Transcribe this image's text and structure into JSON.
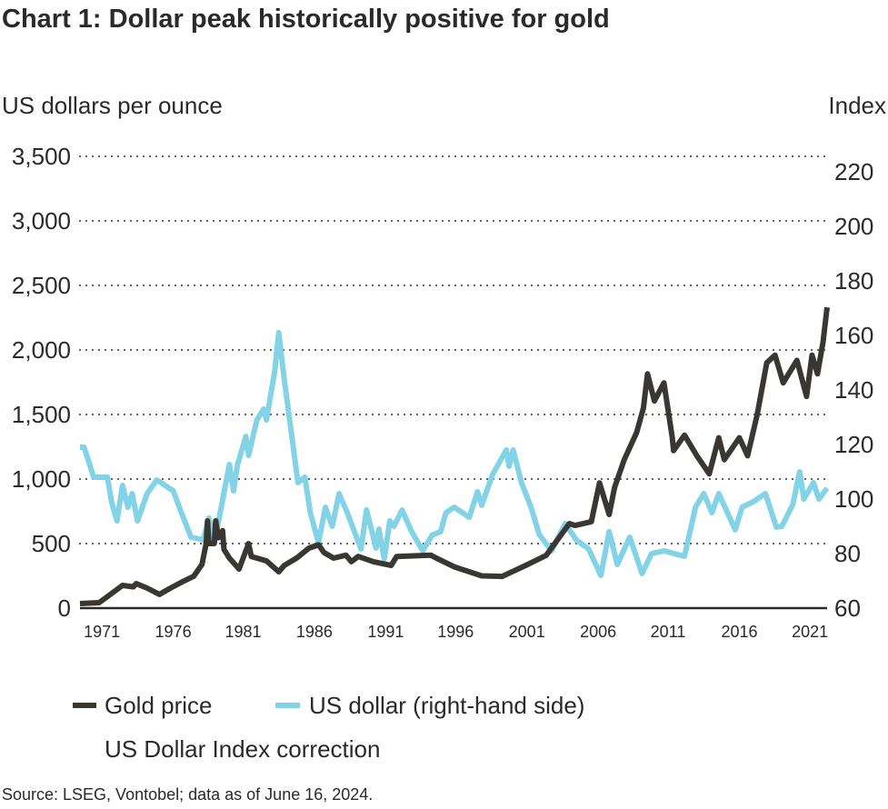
{
  "chart_data": {
    "type": "line",
    "title": "Chart 1: Dollar peak historically positive for gold",
    "ylabel_left": "US dollars per ounce",
    "ylabel_right": "Index",
    "ylim_left": [
      0,
      3500
    ],
    "ylim_right": [
      60,
      225
    ],
    "xlim": [
      1970,
      2024.5
    ],
    "grid": "horizontal dotted",
    "y_ticks_left": [
      "0",
      "500",
      "1,000",
      "1,500",
      "2,000",
      "2,500",
      "3,000",
      "3,500"
    ],
    "y_ticks_left_values": [
      0,
      500,
      1000,
      1500,
      2000,
      2500,
      3000,
      3500
    ],
    "y_ticks_right": [
      "60",
      "80",
      "100",
      "120",
      "140",
      "160",
      "180",
      "200",
      "220"
    ],
    "y_ticks_right_values": [
      60,
      80,
      100,
      120,
      140,
      160,
      180,
      200,
      220
    ],
    "x_ticks": [
      "1971",
      "1976",
      "1981",
      "1986",
      "1991",
      "1996",
      "2001",
      "2006",
      "2011",
      "2016",
      "2021"
    ],
    "x_tick_values": [
      1971.6,
      1976.8,
      1981.9,
      1987.1,
      1992.3,
      1997.4,
      2002.6,
      2007.8,
      2012.9,
      2018.1,
      2023.25
    ],
    "legend_position": "bottom",
    "series": [
      {
        "name": "Gold price",
        "axis": "left",
        "color": "#3a3733",
        "points": [
          [
            1970,
            35
          ],
          [
            1971.4,
            42
          ],
          [
            1972.3,
            113
          ],
          [
            1973.1,
            176
          ],
          [
            1973.9,
            165
          ],
          [
            1974.1,
            190
          ],
          [
            1974.9,
            155
          ],
          [
            1975.8,
            106
          ],
          [
            1976.6,
            155
          ],
          [
            1977.4,
            200
          ],
          [
            1978.3,
            247
          ],
          [
            1978.9,
            338
          ],
          [
            1979.2,
            500
          ],
          [
            1979.3,
            676
          ],
          [
            1979.4,
            500
          ],
          [
            1979.8,
            500
          ],
          [
            1979.9,
            676
          ],
          [
            1980.1,
            545
          ],
          [
            1980.4,
            600
          ],
          [
            1980.5,
            455
          ],
          [
            1980.9,
            387
          ],
          [
            1981.6,
            303
          ],
          [
            1982.3,
            500
          ],
          [
            1982.5,
            400
          ],
          [
            1983.6,
            366
          ],
          [
            1984.5,
            282
          ],
          [
            1984.9,
            330
          ],
          [
            1985.8,
            387
          ],
          [
            1986.7,
            465
          ],
          [
            1987.4,
            490
          ],
          [
            1987.8,
            430
          ],
          [
            1988.5,
            387
          ],
          [
            1989.4,
            410
          ],
          [
            1989.8,
            360
          ],
          [
            1990.3,
            400
          ],
          [
            1991.4,
            360
          ],
          [
            1992.7,
            330
          ],
          [
            1993.1,
            400
          ],
          [
            1995.6,
            410
          ],
          [
            1996,
            387
          ],
          [
            1997.3,
            320
          ],
          [
            1999.3,
            250
          ],
          [
            2000.8,
            246
          ],
          [
            2002.5,
            330
          ],
          [
            2004,
            408
          ],
          [
            2005.7,
            655
          ],
          [
            2006.1,
            640
          ],
          [
            2007.3,
            670
          ],
          [
            2007.9,
            970
          ],
          [
            2008.6,
            725
          ],
          [
            2009,
            935
          ],
          [
            2009.7,
            1150
          ],
          [
            2010.6,
            1360
          ],
          [
            2011.1,
            1550
          ],
          [
            2011.4,
            1815
          ],
          [
            2011.9,
            1605
          ],
          [
            2012.6,
            1745
          ],
          [
            2013.2,
            1325
          ],
          [
            2013.3,
            1220
          ],
          [
            2014.1,
            1340
          ],
          [
            2015,
            1180
          ],
          [
            2015.9,
            1040
          ],
          [
            2016.6,
            1320
          ],
          [
            2017,
            1150
          ],
          [
            2018.1,
            1320
          ],
          [
            2018.7,
            1180
          ],
          [
            2019.4,
            1500
          ],
          [
            2020.1,
            1900
          ],
          [
            2020.7,
            1960
          ],
          [
            2021.3,
            1745
          ],
          [
            2022.3,
            1920
          ],
          [
            2023,
            1640
          ],
          [
            2023.4,
            1960
          ],
          [
            2023.8,
            1815
          ],
          [
            2024.2,
            2060
          ],
          [
            2024.5,
            2330
          ]
        ]
      },
      {
        "name": "US dollar (right-hand side)",
        "axis": "right",
        "color": "#82d3e6",
        "points": [
          [
            1970,
            119
          ],
          [
            1970.3,
            119
          ],
          [
            1971,
            108
          ],
          [
            1972,
            108
          ],
          [
            1972.3,
            99
          ],
          [
            1972.7,
            92
          ],
          [
            1973.1,
            105
          ],
          [
            1973.5,
            97
          ],
          [
            1973.8,
            102
          ],
          [
            1974.2,
            92
          ],
          [
            1974.9,
            102
          ],
          [
            1975.6,
            107
          ],
          [
            1976.8,
            103
          ],
          [
            1977.4,
            95
          ],
          [
            1978.1,
            86
          ],
          [
            1979,
            85
          ],
          [
            1979.4,
            93
          ],
          [
            1979.8,
            84
          ],
          [
            1980.3,
            97
          ],
          [
            1980.9,
            112.7
          ],
          [
            1981.2,
            103
          ],
          [
            1981.5,
            112.7
          ],
          [
            1982.1,
            123
          ],
          [
            1982.3,
            116
          ],
          [
            1982.9,
            129
          ],
          [
            1983.4,
            133
          ],
          [
            1983.6,
            129
          ],
          [
            1984.2,
            146.7
          ],
          [
            1984.5,
            161
          ],
          [
            1984.9,
            144
          ],
          [
            1985.4,
            125
          ],
          [
            1985.9,
            106
          ],
          [
            1986.4,
            108
          ],
          [
            1986.8,
            95
          ],
          [
            1987.4,
            84
          ],
          [
            1987.9,
            97
          ],
          [
            1988.4,
            90
          ],
          [
            1988.9,
            102
          ],
          [
            1989.5,
            95
          ],
          [
            1990.5,
            81.7
          ],
          [
            1990.9,
            96
          ],
          [
            1991.6,
            82
          ],
          [
            1991.8,
            89
          ],
          [
            1992.2,
            78
          ],
          [
            1992.6,
            92
          ],
          [
            1992.9,
            90
          ],
          [
            1993.5,
            96
          ],
          [
            1994.2,
            88
          ],
          [
            1995,
            81
          ],
          [
            1995.7,
            86.8
          ],
          [
            1996.3,
            88
          ],
          [
            1996.7,
            95
          ],
          [
            1997.3,
            97
          ],
          [
            1998.4,
            93.3
          ],
          [
            1999,
            102.7
          ],
          [
            1999.3,
            97.7
          ],
          [
            2000.1,
            109
          ],
          [
            2001.1,
            118
          ],
          [
            2001.3,
            112
          ],
          [
            2001.6,
            118
          ],
          [
            2002.2,
            106
          ],
          [
            2002.9,
            97
          ],
          [
            2003.5,
            87
          ],
          [
            2004.4,
            81
          ],
          [
            2005.4,
            91
          ],
          [
            2006.2,
            85
          ],
          [
            2007.1,
            81.7
          ],
          [
            2008,
            72
          ],
          [
            2008.6,
            88
          ],
          [
            2009.2,
            76
          ],
          [
            2010.1,
            86
          ],
          [
            2011,
            72.7
          ],
          [
            2011.7,
            80
          ],
          [
            2012.6,
            81
          ],
          [
            2014.1,
            79
          ],
          [
            2014.9,
            97
          ],
          [
            2015.5,
            102
          ],
          [
            2016.1,
            95
          ],
          [
            2016.6,
            102
          ],
          [
            2017.8,
            88.7
          ],
          [
            2018.3,
            97
          ],
          [
            2019.1,
            99
          ],
          [
            2020,
            102
          ],
          [
            2020.8,
            89.7
          ],
          [
            2021.2,
            90
          ],
          [
            2022,
            98
          ],
          [
            2022.5,
            110
          ],
          [
            2022.8,
            100
          ],
          [
            2023.5,
            106
          ],
          [
            2023.9,
            100
          ],
          [
            2024.5,
            104
          ]
        ]
      }
    ],
    "legend": [
      "Gold price",
      "US dollar (right-hand side)"
    ],
    "annotation": "US Dollar Index correction",
    "source": "Source: LSEG, Vontobel; data as of June 16, 2024."
  }
}
